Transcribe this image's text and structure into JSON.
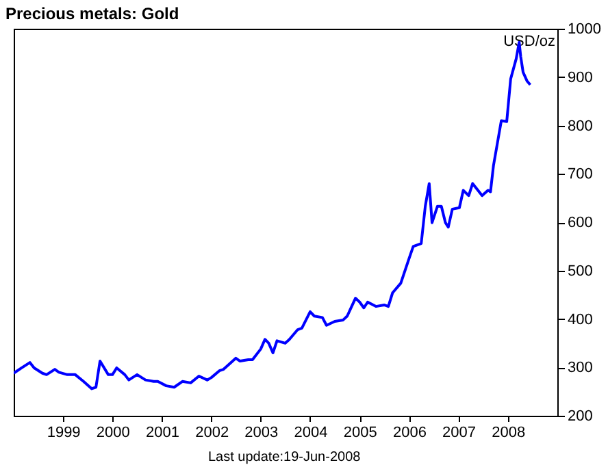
{
  "chart_data": {
    "type": "line",
    "title": "Precious metals: Gold",
    "ylabel": "USD/oz",
    "annotations": [
      "Last update:19-Jun-2008"
    ],
    "x": [
      "1998-01",
      "1998-03",
      "1998-05",
      "1998-06",
      "1998-08",
      "1998-09",
      "1998-11",
      "1998-12",
      "1999-02",
      "1999-04",
      "1999-06",
      "1999-08",
      "1999-09",
      "1999-10",
      "1999-12",
      "2000-01",
      "2000-02",
      "2000-04",
      "2000-05",
      "2000-07",
      "2000-09",
      "2000-11",
      "2000-12",
      "2001-02",
      "2001-04",
      "2001-06",
      "2001-08",
      "2001-10",
      "2001-12",
      "2002-01",
      "2002-03",
      "2002-04",
      "2002-07",
      "2002-08",
      "2002-10",
      "2002-11",
      "2003-01",
      "2003-02",
      "2003-03",
      "2003-04",
      "2003-05",
      "2003-07",
      "2003-08",
      "2003-10",
      "2003-11",
      "2004-01",
      "2004-02",
      "2004-04",
      "2004-05",
      "2004-07",
      "2004-09",
      "2004-10",
      "2004-12",
      "2005-01",
      "2005-02",
      "2005-03",
      "2005-05",
      "2005-07",
      "2005-08",
      "2005-09",
      "2005-11",
      "2006-01",
      "2006-02",
      "2006-04",
      "2006-05-01",
      "2006-05-30",
      "2006-06-20",
      "2006-07-30",
      "2006-08-28",
      "2006-09-27",
      "2006-10-18",
      "2006-11-17",
      "2007-01-08",
      "2007-02-06",
      "2007-03-18",
      "2007-04-16",
      "2007-06-25",
      "2007-08-08",
      "2007-08-26",
      "2007-09-17",
      "2007-11-14",
      "2007-12-24",
      "2008-01-22",
      "2008-03-03",
      "2008-03-25",
      "2008-04-05",
      "2008-04-23",
      "2008-05-22",
      "2008-06-15"
    ],
    "series": [
      {
        "color": "#0000ff",
        "values": [
          288,
          299,
          310,
          299,
          288,
          285,
          296,
          290,
          285,
          285,
          271,
          256,
          259,
          313,
          285,
          285,
          299,
          285,
          274,
          285,
          274,
          271,
          271,
          262,
          259,
          271,
          268,
          282,
          274,
          279,
          293,
          296,
          319,
          313,
          316,
          316,
          338,
          358,
          350,
          330,
          355,
          350,
          358,
          378,
          381,
          415,
          406,
          403,
          387,
          395,
          398,
          406,
          443,
          435,
          423,
          435,
          426,
          429,
          426,
          454,
          474,
          525,
          550,
          556,
          633,
          680,
          599,
          633,
          633,
          599,
          590,
          627,
          630,
          666,
          655,
          680,
          655,
          666,
          663,
          717,
          810,
          808,
          896,
          938,
          972,
          943,
          910,
          892,
          884
        ]
      }
    ],
    "xlim": [
      "1998-01-01",
      "2009-01-01"
    ],
    "xticks": [
      "1999",
      "2000",
      "2001",
      "2002",
      "2003",
      "2004",
      "2005",
      "2006",
      "2007",
      "2008"
    ],
    "ylim": [
      200,
      1000
    ],
    "yticks": [
      200,
      300,
      400,
      500,
      600,
      700,
      800,
      900,
      1000
    ],
    "grid": false,
    "marker": "none",
    "line_style": "solid"
  }
}
